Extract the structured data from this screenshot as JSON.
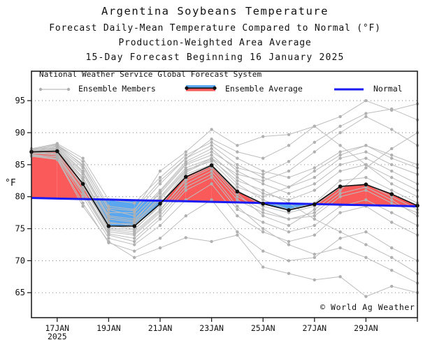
{
  "header": {
    "title": "Argentina Soybeans Temperature",
    "subtitle1": "Forecast Daily-Mean Temperature Compared to Normal (°F)",
    "subtitle2": "Production-Weighted Area Average",
    "subtitle3": "15-Day Forecast Beginning 16 January 2025"
  },
  "legend": {
    "header": "National Weather Service Global Forecast System",
    "members_label": "Ensemble Members",
    "average_label": "Ensemble Average",
    "normal_label": "Normal"
  },
  "footer": {
    "copyright": "© World Ag Weather"
  },
  "chart_data": {
    "type": "line",
    "title": "Argentina Soybeans Temperature",
    "xlabel": "",
    "ylabel": "°F",
    "grid": "horizontal-dotted",
    "legend_position": "top-left-inside",
    "x": [
      "16JAN",
      "17JAN",
      "18JAN",
      "19JAN",
      "20JAN",
      "21JAN",
      "22JAN",
      "23JAN",
      "24JAN",
      "25JAN",
      "26JAN",
      "27JAN",
      "28JAN",
      "29JAN",
      "30JAN",
      "31JAN"
    ],
    "year": "2025",
    "x_tick_indices": [
      1,
      3,
      5,
      7,
      9,
      11,
      13,
      15
    ],
    "x_tick_labels": [
      "17JAN",
      "19JAN",
      "21JAN",
      "23JAN",
      "25JAN",
      "27JAN",
      "29JAN",
      ""
    ],
    "y_ticks": [
      65,
      70,
      75,
      80,
      85,
      90,
      95
    ],
    "ylim": [
      61.1,
      99.6
    ],
    "series": [
      {
        "name": "Ensemble Average",
        "values": [
          87.0,
          87.1,
          82.0,
          75.4,
          75.4,
          78.9,
          83.1,
          84.9,
          80.8,
          78.9,
          77.9,
          78.8,
          81.6,
          81.9,
          80.4,
          78.6
        ]
      },
      {
        "name": "Normal",
        "values": [
          79.8,
          79.71,
          79.63,
          79.54,
          79.45,
          79.37,
          79.28,
          79.19,
          79.11,
          79.02,
          78.93,
          78.85,
          78.76,
          78.67,
          78.59,
          78.5
        ]
      }
    ],
    "ensemble_members": [
      [
        87.2,
        87.5,
        83.0,
        76.0,
        75.5,
        79.5,
        84.0,
        86.0,
        82.0,
        79.5,
        78.0,
        79.0,
        82.5,
        83.0,
        81.0,
        79.0
      ],
      [
        86.8,
        86.5,
        81.0,
        74.5,
        74.0,
        77.5,
        82.0,
        84.0,
        79.5,
        77.5,
        76.5,
        77.0,
        80.0,
        81.0,
        79.0,
        77.5
      ],
      [
        87.0,
        88.0,
        85.0,
        78.0,
        77.0,
        81.0,
        85.5,
        87.5,
        84.0,
        82.0,
        80.5,
        82.0,
        85.0,
        86.0,
        84.0,
        82.0
      ],
      [
        86.5,
        86.0,
        80.0,
        73.5,
        72.5,
        75.5,
        79.5,
        82.0,
        77.0,
        74.5,
        73.0,
        74.0,
        77.5,
        78.5,
        76.0,
        74.0
      ],
      [
        87.5,
        88.3,
        86.0,
        79.5,
        79.0,
        83.0,
        86.5,
        88.5,
        86.0,
        84.0,
        83.0,
        84.5,
        87.0,
        88.0,
        86.5,
        85.0
      ],
      [
        86.4,
        85.9,
        79.0,
        72.8,
        71.5,
        73.5,
        77.0,
        79.5,
        74.5,
        71.5,
        70.0,
        70.5,
        73.5,
        74.5,
        72.0,
        70.0
      ],
      [
        87.1,
        87.2,
        82.5,
        75.5,
        75.0,
        78.5,
        83.5,
        85.0,
        81.0,
        78.5,
        77.5,
        78.5,
        81.5,
        82.0,
        80.0,
        78.0
      ],
      [
        86.9,
        87.8,
        84.0,
        77.0,
        76.5,
        80.5,
        85.0,
        86.5,
        83.0,
        80.5,
        79.5,
        81.0,
        84.0,
        85.0,
        83.0,
        81.0
      ],
      [
        86.6,
        86.2,
        80.5,
        74.0,
        73.0,
        76.5,
        81.0,
        83.0,
        78.0,
        76.0,
        74.5,
        75.5,
        78.5,
        79.5,
        77.5,
        75.5
      ],
      [
        87.3,
        87.9,
        84.5,
        77.5,
        77.5,
        82.0,
        86.0,
        88.0,
        85.0,
        83.0,
        81.5,
        83.0,
        86.0,
        87.0,
        85.0,
        83.5
      ],
      [
        86.7,
        86.8,
        81.5,
        75.0,
        74.5,
        78.0,
        82.5,
        84.5,
        80.0,
        78.0,
        76.5,
        77.5,
        80.5,
        81.5,
        79.5,
        77.0
      ],
      [
        87.0,
        87.4,
        83.5,
        76.5,
        76.0,
        80.0,
        84.5,
        86.0,
        83.5,
        82.5,
        84.0,
        87.0,
        90.0,
        92.5,
        90.5,
        88.0
      ],
      [
        87.4,
        88.1,
        85.5,
        78.5,
        78.0,
        82.5,
        86.0,
        89.0,
        87.0,
        86.0,
        88.0,
        91.0,
        92.5,
        95.0,
        93.5,
        94.5
      ],
      [
        86.3,
        85.8,
        78.5,
        73.0,
        70.5,
        72.0,
        73.6,
        73.0,
        74.0,
        69.0,
        68.0,
        67.0,
        67.5,
        64.4,
        66.0,
        65.0
      ],
      [
        87.2,
        87.6,
        83.8,
        76.8,
        76.2,
        80.8,
        85.2,
        87.0,
        84.5,
        83.5,
        85.5,
        88.5,
        91.0,
        93.0,
        93.7,
        92.0
      ],
      [
        86.5,
        86.3,
        80.8,
        74.2,
        73.5,
        77.0,
        81.5,
        83.5,
        78.5,
        75.0,
        72.5,
        71.0,
        72.0,
        70.5,
        68.5,
        66.5
      ],
      [
        87.1,
        87.3,
        82.8,
        75.8,
        75.8,
        79.8,
        84.2,
        85.5,
        81.5,
        80.0,
        81.5,
        84.0,
        86.5,
        88.0,
        86.0,
        84.5
      ],
      [
        86.8,
        87.0,
        82.0,
        75.2,
        74.8,
        78.8,
        83.8,
        85.8,
        82.5,
        81.0,
        79.0,
        76.5,
        74.5,
        72.5,
        70.5,
        68.0
      ],
      [
        87.0,
        86.6,
        81.8,
        74.8,
        74.2,
        77.8,
        82.8,
        84.8,
        80.5,
        77.0,
        75.5,
        78.0,
        81.0,
        84.5,
        87.5,
        90.0
      ],
      [
        87.3,
        88.2,
        84.8,
        78.2,
        77.8,
        84.0,
        87.0,
        90.5,
        88.0,
        89.4,
        89.7,
        91.0,
        88.0,
        85.0,
        82.0,
        80.0
      ]
    ],
    "colors": {
      "above_normal": "#fb5a5a",
      "below_normal": "#5aa7f0",
      "normal_line": "#1a1af2",
      "average_line": "#111111",
      "members": "#bdbdbd",
      "member_dots": "#b0b0b0",
      "grid": "#8a8a8a",
      "axis": "#222222"
    }
  }
}
